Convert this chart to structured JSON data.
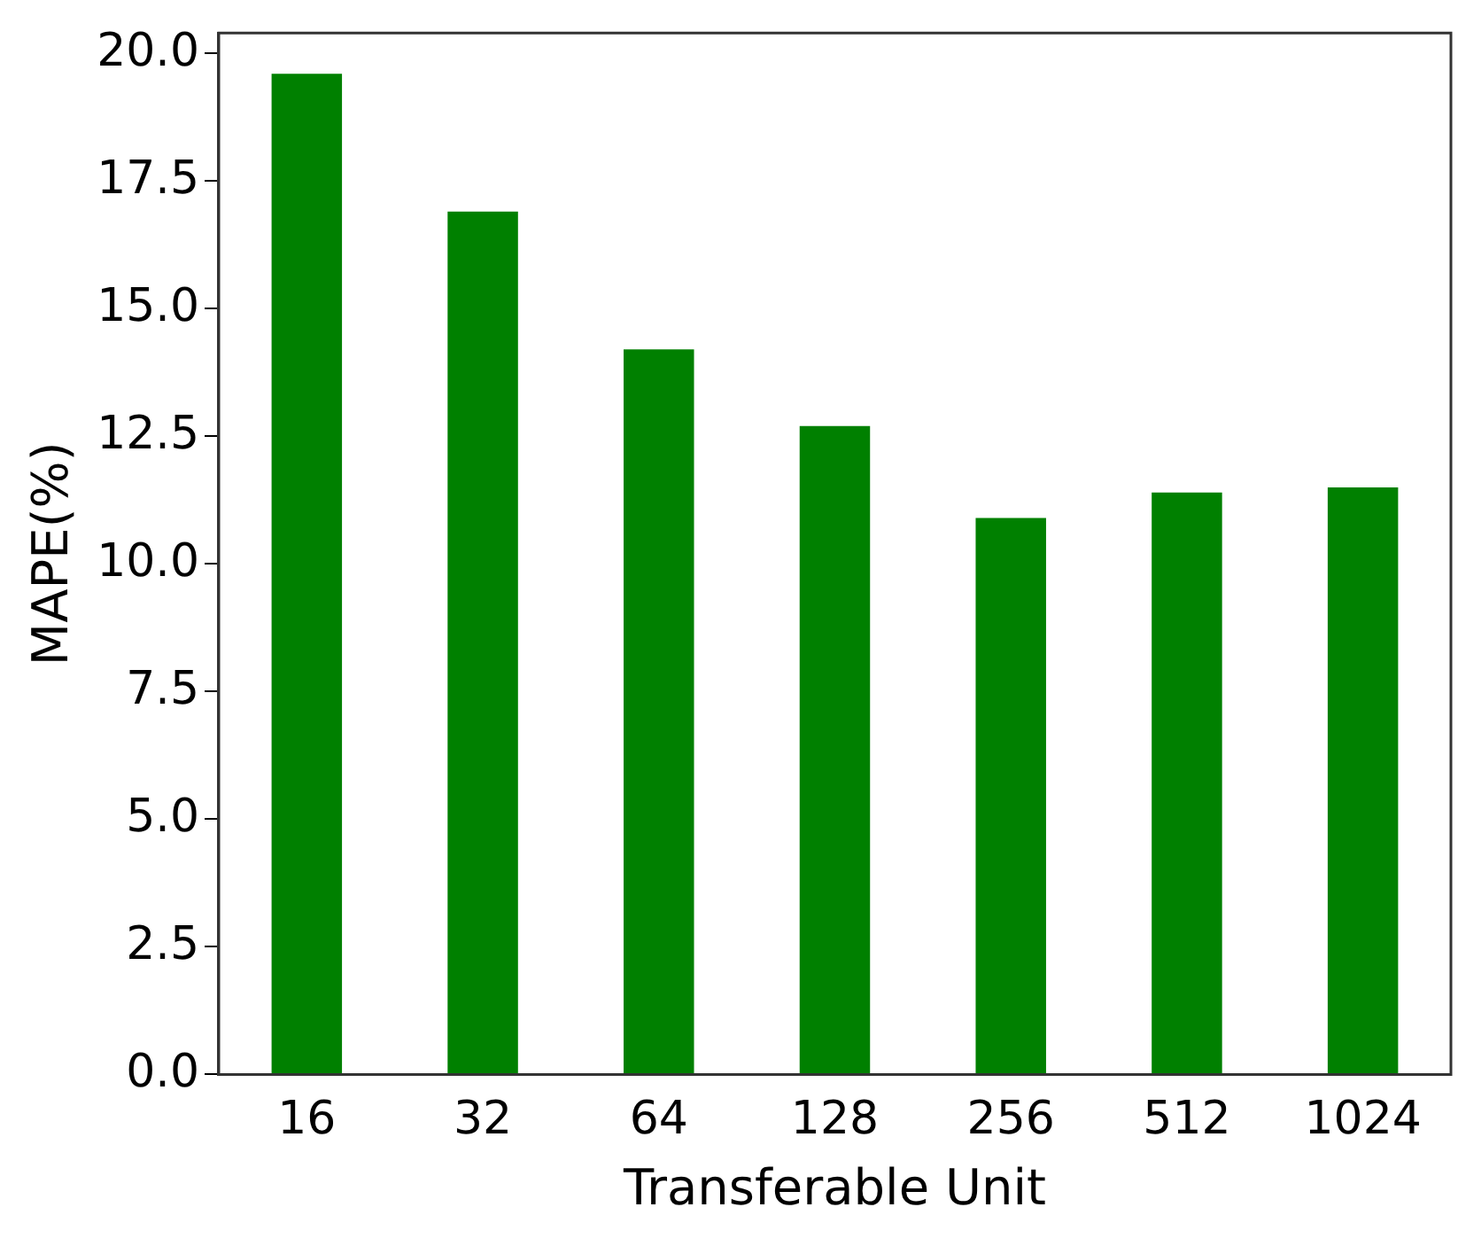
{
  "chart_data": {
    "type": "bar",
    "xlabel": "Transferable Unit",
    "ylabel": "MAPE(%)",
    "categories": [
      "16",
      "32",
      "64",
      "128",
      "256",
      "512",
      "1024"
    ],
    "values": [
      19.6,
      16.9,
      14.2,
      12.7,
      10.9,
      11.4,
      11.5
    ],
    "color": "#008000",
    "ylim": [
      0,
      20.4
    ],
    "yticks": [
      {
        "value": 0,
        "label": "0.0"
      },
      {
        "value": 2.5,
        "label": "2.5"
      },
      {
        "value": 5,
        "label": "5.0"
      },
      {
        "value": 7.5,
        "label": "7.5"
      },
      {
        "value": 10,
        "label": "10.0"
      },
      {
        "value": 12.5,
        "label": "12.5"
      },
      {
        "value": 15,
        "label": "15.0"
      },
      {
        "value": 17.5,
        "label": "17.5"
      },
      {
        "value": 20,
        "label": "20.0"
      }
    ],
    "grid": false,
    "legend": false
  }
}
